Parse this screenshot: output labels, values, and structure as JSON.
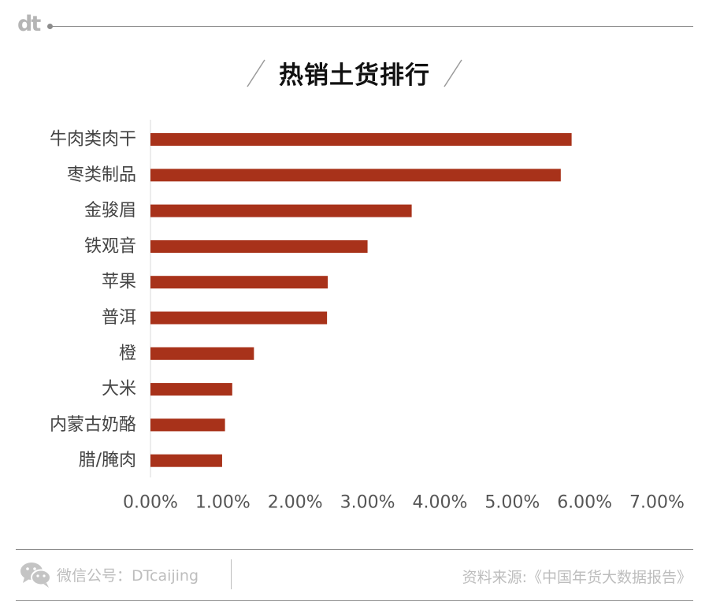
{
  "brand": {
    "logo_text": "dt"
  },
  "chart_data": {
    "type": "bar",
    "orientation": "horizontal",
    "title": "热销土货排行",
    "categories": [
      "牛肉类肉干",
      "枣类制品",
      "金骏眉",
      "铁观音",
      "苹果",
      "普洱",
      "橙",
      "大米",
      "内蒙古奶酪",
      "腊/腌肉"
    ],
    "values": [
      5.82,
      5.67,
      3.61,
      3.0,
      2.45,
      2.44,
      1.43,
      1.13,
      1.03,
      0.99
    ],
    "xlabel": "",
    "ylabel": "",
    "xlim": [
      0,
      7
    ],
    "x_ticks": [
      "0.00%",
      "1.00%",
      "2.00%",
      "3.00%",
      "4.00%",
      "5.00%",
      "6.00%",
      "7.00%"
    ],
    "bar_color": "#a8321a",
    "grid": false,
    "legend": "none"
  },
  "footer": {
    "wechat_label": "微信公号：DTcaijing",
    "source": "资料来源:《中国年货大数据报告》"
  }
}
